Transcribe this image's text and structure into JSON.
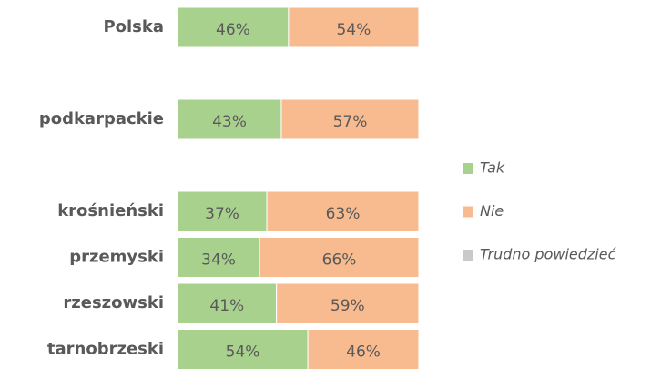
{
  "chart_data": {
    "type": "stacked-bar-horizontal-100",
    "categories": [
      "Polska",
      null,
      "podkarpackie",
      null,
      "krośnieński",
      "przemyski",
      "rzeszowski",
      "tarnobrzeski"
    ],
    "series": [
      {
        "name": "Tak",
        "color": "#a9d18e",
        "values": [
          46,
          null,
          43,
          null,
          37,
          34,
          41,
          54
        ],
        "value_labels": [
          "46%",
          null,
          "43%",
          null,
          "37%",
          "34%",
          "41%",
          "54%"
        ]
      },
      {
        "name": "Nie",
        "color": "#f8bb8f",
        "values": [
          54,
          null,
          57,
          null,
          63,
          66,
          59,
          46
        ],
        "value_labels": [
          "54%",
          null,
          "57%",
          null,
          "63%",
          "66%",
          "59%",
          "46%"
        ]
      },
      {
        "name": "Trudno powiedzieć",
        "color": "#c9c9c9",
        "values": [
          0,
          null,
          0,
          null,
          0,
          0,
          0,
          0
        ]
      }
    ],
    "legend": "right"
  }
}
